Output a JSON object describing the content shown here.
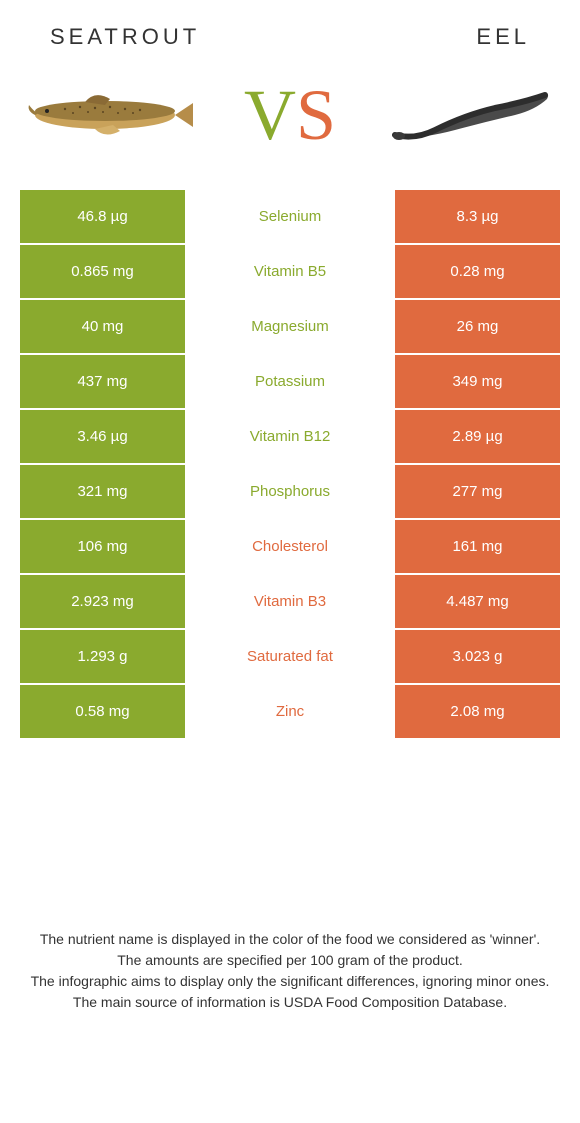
{
  "colors": {
    "left": "#8aaa2e",
    "right": "#e06a3f",
    "background": "#ffffff",
    "text": "#333333"
  },
  "header": {
    "left_title": "Seatrout",
    "right_title": "Eel",
    "vs_v": "V",
    "vs_s": "S"
  },
  "rows": [
    {
      "left": "46.8 µg",
      "label": "Selenium",
      "right": "8.3 µg",
      "winner": "left"
    },
    {
      "left": "0.865 mg",
      "label": "Vitamin B5",
      "right": "0.28 mg",
      "winner": "left"
    },
    {
      "left": "40 mg",
      "label": "Magnesium",
      "right": "26 mg",
      "winner": "left"
    },
    {
      "left": "437 mg",
      "label": "Potassium",
      "right": "349 mg",
      "winner": "left"
    },
    {
      "left": "3.46 µg",
      "label": "Vitamin B12",
      "right": "2.89 µg",
      "winner": "left"
    },
    {
      "left": "321 mg",
      "label": "Phosphorus",
      "right": "277 mg",
      "winner": "left"
    },
    {
      "left": "106 mg",
      "label": "Cholesterol",
      "right": "161 mg",
      "winner": "right"
    },
    {
      "left": "2.923 mg",
      "label": "Vitamin B3",
      "right": "4.487 mg",
      "winner": "right"
    },
    {
      "left": "1.293 g",
      "label": "Saturated fat",
      "right": "3.023 g",
      "winner": "right"
    },
    {
      "left": "0.58 mg",
      "label": "Zinc",
      "right": "2.08 mg",
      "winner": "right"
    }
  ],
  "footer": {
    "line1": "The nutrient name is displayed in the color of the food we considered as 'winner'.",
    "line2": "The amounts are specified per 100 gram of the product.",
    "line3": "The infographic aims to display only the significant differences, ignoring minor ones.",
    "line4": "The main source of information is USDA Food Composition Database."
  }
}
